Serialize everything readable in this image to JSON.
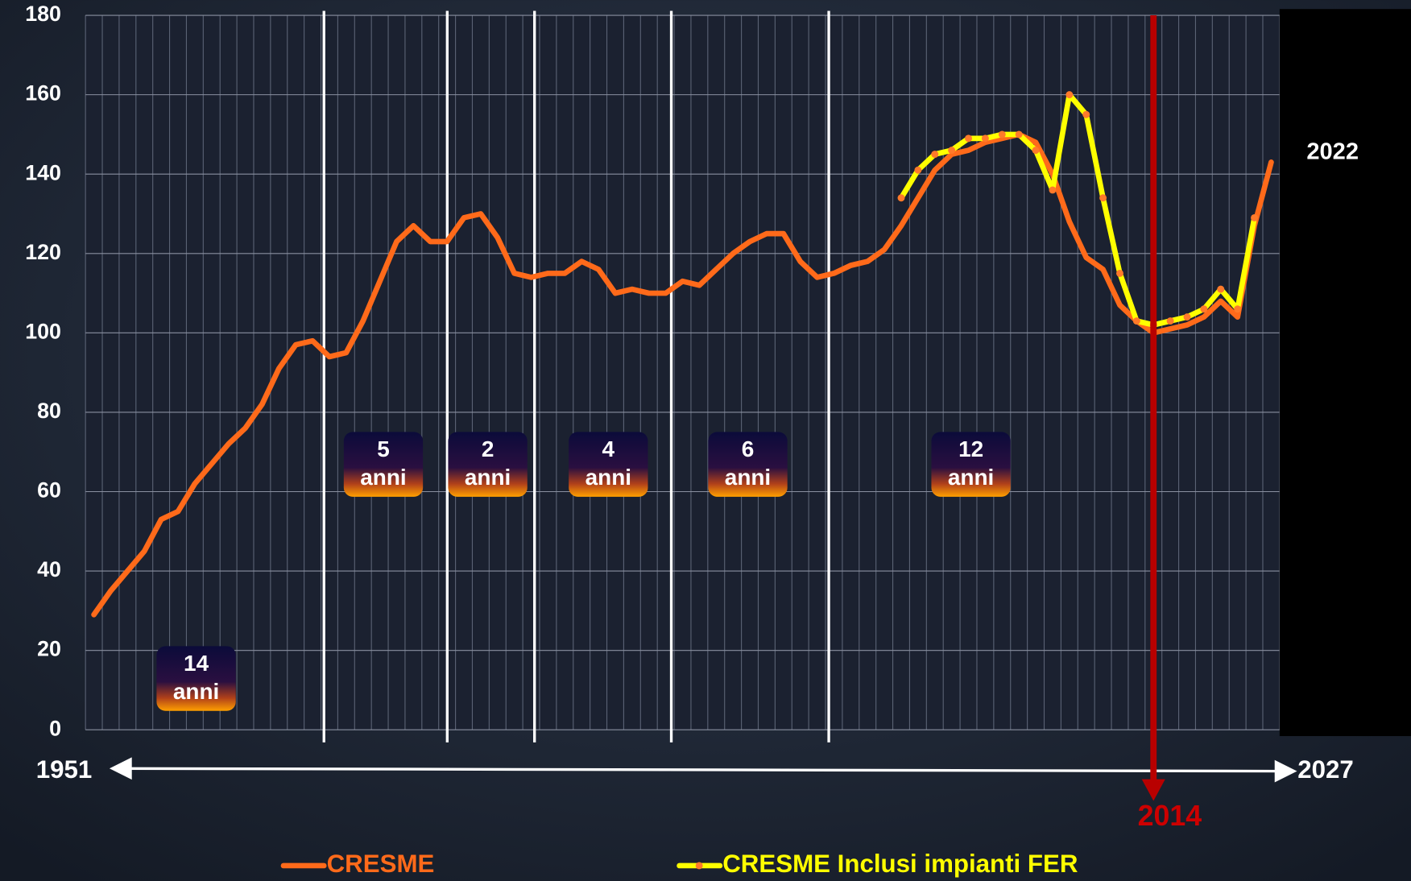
{
  "chart_data": {
    "type": "line",
    "xlim": [
      1950.5,
      2021.5
    ],
    "ylim": [
      0,
      180
    ],
    "yticks": [
      0,
      20,
      40,
      60,
      80,
      100,
      120,
      140,
      160,
      180
    ],
    "grid": true,
    "series": [
      {
        "name": "CRESME",
        "color": "#ff6a1a",
        "x": [
          1951,
          1952,
          1953,
          1954,
          1955,
          1956,
          1957,
          1958,
          1959,
          1960,
          1961,
          1962,
          1963,
          1964,
          1965,
          1966,
          1967,
          1968,
          1969,
          1970,
          1971,
          1972,
          1973,
          1974,
          1975,
          1976,
          1977,
          1978,
          1979,
          1980,
          1981,
          1982,
          1983,
          1984,
          1985,
          1986,
          1987,
          1988,
          1989,
          1990,
          1991,
          1992,
          1993,
          1994,
          1995,
          1996,
          1997,
          1998,
          1999,
          2000,
          2001,
          2002,
          2003,
          2004,
          2005,
          2006,
          2007,
          2008,
          2009,
          2010,
          2011,
          2012,
          2013,
          2014,
          2015,
          2016,
          2017,
          2018,
          2019,
          2020,
          2021
        ],
        "values": [
          29,
          35,
          40,
          45,
          53,
          55,
          62,
          67,
          72,
          76,
          82,
          91,
          97,
          98,
          94,
          95,
          103,
          113,
          123,
          127,
          123,
          123,
          129,
          130,
          124,
          115,
          114,
          115,
          115,
          118,
          116,
          110,
          111,
          110,
          110,
          113,
          112,
          116,
          120,
          123,
          125,
          125,
          118,
          114,
          115,
          117,
          118,
          121,
          127,
          134,
          141,
          145,
          146,
          148,
          149,
          150,
          148,
          140,
          128,
          119,
          116,
          107,
          103,
          100,
          101,
          102,
          104,
          108,
          104,
          127,
          143
        ]
      },
      {
        "name": "CRESME Inclusi impianti FER",
        "color": "#ffff00",
        "marker_color": "#ff7a2a",
        "x": [
          1999,
          2000,
          2001,
          2002,
          2003,
          2004,
          2005,
          2006,
          2007,
          2008,
          2009,
          2010,
          2011,
          2012,
          2013,
          2014,
          2015,
          2016,
          2017,
          2018,
          2019,
          2020
        ],
        "values": [
          134,
          141,
          145,
          146,
          149,
          149,
          150,
          150,
          146,
          136,
          160,
          155,
          134,
          115,
          103,
          102,
          103,
          104,
          106,
          111,
          106,
          129
        ]
      }
    ],
    "annotations": [
      {
        "number": "14",
        "unit": "anni"
      },
      {
        "number": "5",
        "unit": "anni"
      },
      {
        "number": "2",
        "unit": "anni"
      },
      {
        "number": "4",
        "unit": "anni"
      },
      {
        "number": "6",
        "unit": "anni"
      },
      {
        "number": "12",
        "unit": "anni"
      }
    ],
    "axis_start_label": "1951",
    "axis_end_label": "2027",
    "corner_label": "2022",
    "marker": {
      "x": 2014,
      "color": "#b80000"
    }
  }
}
